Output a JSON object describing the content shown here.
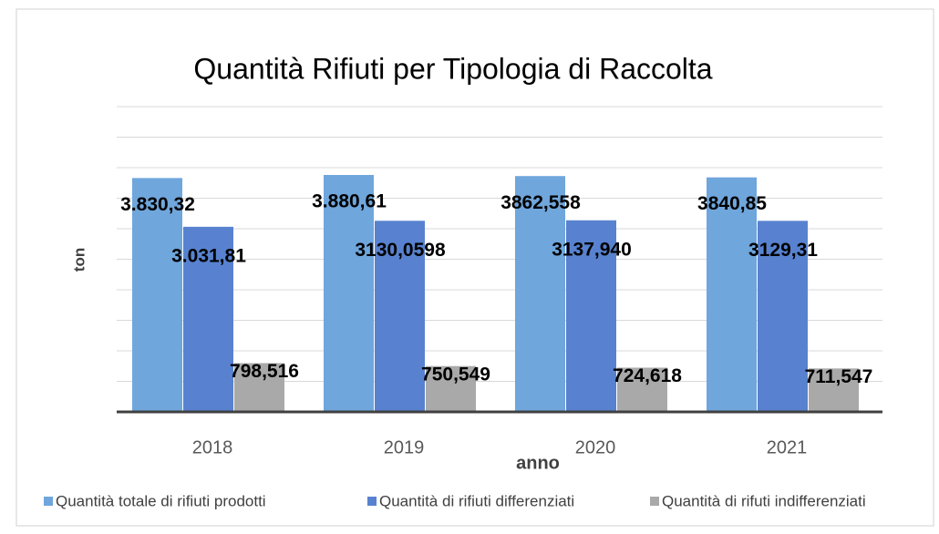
{
  "chart_data": {
    "type": "bar",
    "title": "Quantità Rifiuti per Tipologia di Raccolta",
    "x_label": "anno",
    "y_label": "ton",
    "categories": [
      "2018",
      "2019",
      "2020",
      "2021"
    ],
    "series": [
      {
        "name": "Quantità totale di rifiuti prodotti",
        "color": "#6fa6dc",
        "values": [
          3830.32,
          3880.61,
          3862.558,
          3840.85
        ],
        "value_labels": [
          "3.830,32",
          "3.880,61",
          "3862,558",
          "3840,85"
        ]
      },
      {
        "name": "Quantità di rifiuti differenziati",
        "color": "#5882cf",
        "values": [
          3031.81,
          3130.0598,
          3137.94,
          3129.31
        ],
        "value_labels": [
          "3.031,81",
          "3130,0598",
          "3137,940",
          "3129,31"
        ]
      },
      {
        "name": "Quantità di rifuti indifferenziati",
        "color": "#a9a9a9",
        "values": [
          798.516,
          750.549,
          724.618,
          711.547
        ],
        "value_labels": [
          "798,516",
          "750,549",
          "724,618",
          "711,547"
        ]
      }
    ],
    "ylim": [
      0,
      5000
    ],
    "yticks": [
      0,
      500,
      1000,
      1500,
      2000,
      2500,
      3000,
      3500,
      4000,
      4500,
      5000
    ],
    "grid": true,
    "legend": "bottom"
  }
}
